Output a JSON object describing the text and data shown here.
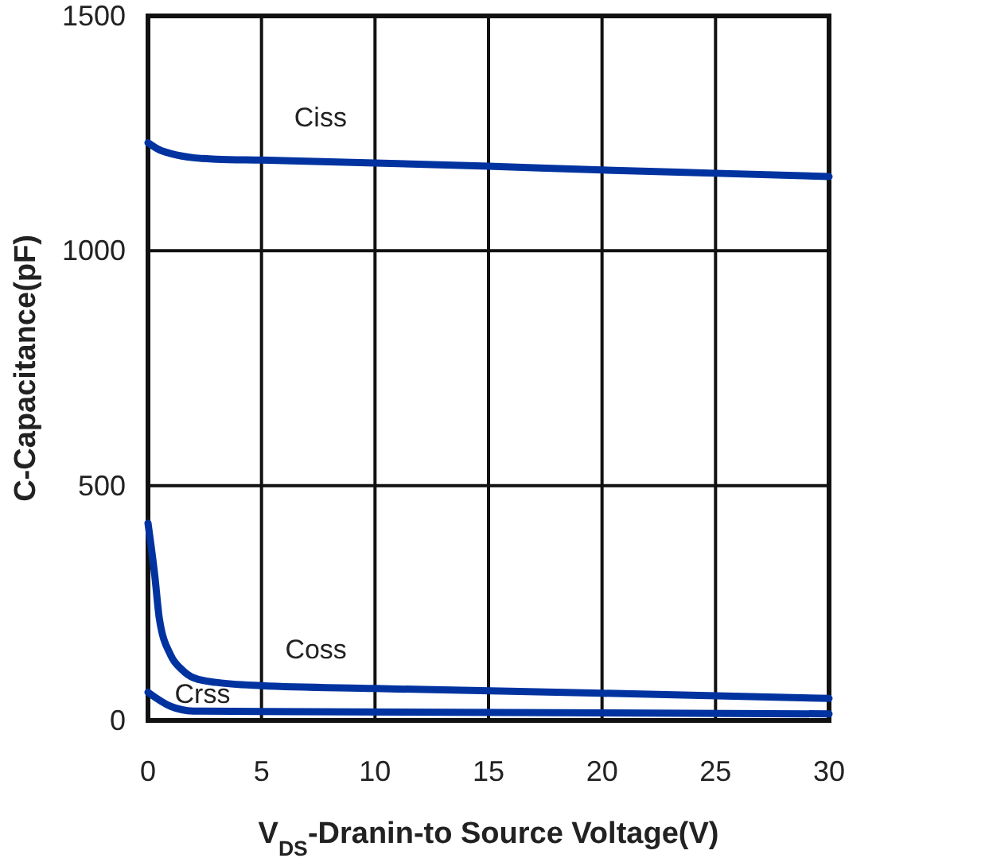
{
  "chart_data": {
    "type": "line",
    "xlabel": "V$_{DS}$-Dranin-to Source Voltage(V)",
    "ylabel": "C-Capacitance(pF)",
    "xlim": [
      0,
      30
    ],
    "xticks": [
      0,
      5,
      10,
      15,
      20,
      25,
      30
    ],
    "ylim": [
      0,
      1500
    ],
    "yticks": [
      0,
      500,
      1000,
      1500
    ],
    "grid": true,
    "line_style": "solid",
    "marker": "none",
    "series": [
      {
        "name": "Ciss",
        "color": "#0033a0",
        "x": [
          0,
          0.5,
          1,
          2,
          3,
          5,
          10,
          15,
          20,
          25,
          30
        ],
        "values": [
          1230,
          1215,
          1207,
          1198,
          1195,
          1193,
          1187,
          1180,
          1172,
          1165,
          1158
        ]
      },
      {
        "name": "Coss",
        "color": "#0033a0",
        "x": [
          0,
          0.3,
          0.5,
          1,
          1.5,
          2,
          3,
          5,
          10,
          20,
          30
        ],
        "values": [
          420,
          308,
          217,
          139,
          108,
          91,
          81,
          74,
          68,
          58,
          47
        ]
      },
      {
        "name": "Crss",
        "color": "#0033a0",
        "x": [
          0,
          1,
          2,
          5,
          30
        ],
        "values": [
          60,
          30,
          20,
          19,
          14
        ]
      }
    ]
  }
}
